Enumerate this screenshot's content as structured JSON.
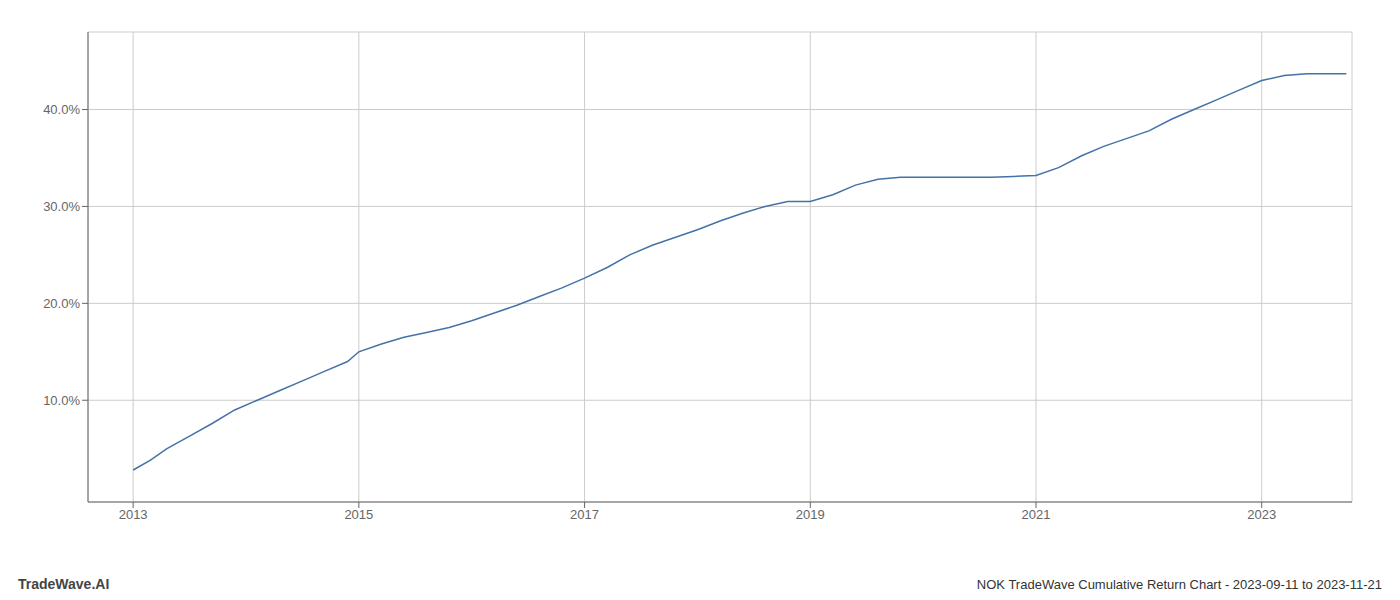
{
  "chart_data": {
    "type": "line",
    "title": "NOK TradeWave Cumulative Return Chart - 2023-09-11 to 2023-11-21",
    "annotations": [
      "TradeWave.AI"
    ],
    "color": "#4472a8",
    "grid": true,
    "x": [
      2013.0,
      2013.15,
      2013.3,
      2013.5,
      2013.7,
      2013.9,
      2014.1,
      2014.3,
      2014.5,
      2014.7,
      2014.9,
      2015.0,
      2015.2,
      2015.4,
      2015.6,
      2015.8,
      2016.0,
      2016.2,
      2016.4,
      2016.6,
      2016.8,
      2017.0,
      2017.2,
      2017.4,
      2017.6,
      2017.8,
      2018.0,
      2018.2,
      2018.4,
      2018.6,
      2018.8,
      2019.0,
      2019.2,
      2019.4,
      2019.6,
      2019.8,
      2020.0,
      2020.2,
      2020.4,
      2020.6,
      2020.8,
      2021.0,
      2021.2,
      2021.4,
      2021.6,
      2021.8,
      2022.0,
      2022.2,
      2022.4,
      2022.6,
      2022.8,
      2023.0,
      2023.2,
      2023.4,
      2023.6,
      2023.75
    ],
    "values": [
      0.028,
      0.038,
      0.05,
      0.063,
      0.076,
      0.09,
      0.1,
      0.11,
      0.12,
      0.13,
      0.14,
      0.15,
      0.158,
      0.165,
      0.17,
      0.175,
      0.182,
      0.19,
      0.198,
      0.207,
      0.216,
      0.226,
      0.237,
      0.25,
      0.26,
      0.268,
      0.276,
      0.285,
      0.293,
      0.3,
      0.305,
      0.305,
      0.312,
      0.322,
      0.328,
      0.33,
      0.33,
      0.33,
      0.33,
      0.33,
      0.331,
      0.332,
      0.34,
      0.352,
      0.362,
      0.37,
      0.378,
      0.39,
      0.4,
      0.41,
      0.42,
      0.43,
      0.435,
      0.437,
      0.437,
      0.437
    ],
    "xlim": [
      2012.6,
      2023.8
    ],
    "xticks": [
      2013,
      2015,
      2017,
      2019,
      2021,
      2023
    ],
    "ylim": [
      -0.005,
      0.48
    ],
    "yticks": [
      {
        "value": 0.1,
        "label": "10.0%"
      },
      {
        "value": 0.2,
        "label": "20.0%"
      },
      {
        "value": 0.3,
        "label": "30.0%"
      },
      {
        "value": 0.4,
        "label": "40.0%"
      }
    ]
  }
}
